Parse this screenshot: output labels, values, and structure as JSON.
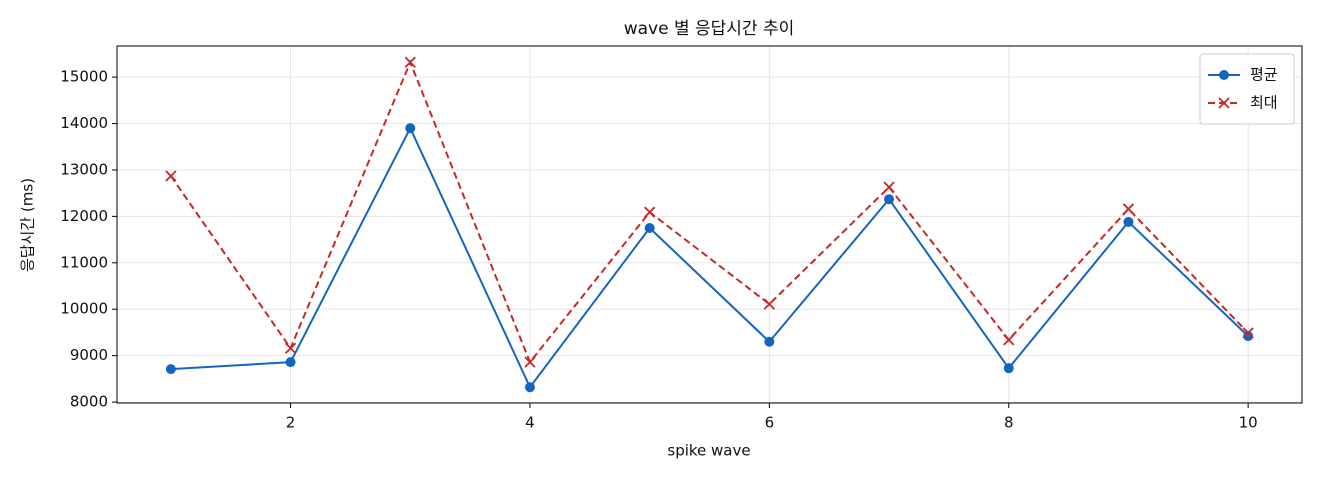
{
  "chart_data": {
    "type": "line",
    "title": "wave 별 응답시간 추이",
    "x_label": "spike wave",
    "y_label": "응답시간 (ms)",
    "x": [
      1,
      2,
      3,
      4,
      5,
      6,
      7,
      8,
      9,
      10
    ],
    "series": [
      {
        "name": "평균",
        "color": "#1565c0",
        "linestyle": "solid",
        "marker": "circle",
        "values": [
          8710,
          8860,
          13900,
          8320,
          11750,
          9300,
          12370,
          8730,
          11880,
          9420
        ]
      },
      {
        "name": "최대",
        "color": "#c62828",
        "linestyle": "dashed",
        "marker": "x",
        "values": [
          12870,
          9160,
          15320,
          8860,
          12090,
          10110,
          12630,
          9340,
          12160,
          9490
        ]
      }
    ],
    "xlim": [
      0.55,
      10.45
    ],
    "xticks": [
      2,
      4,
      6,
      8,
      10
    ],
    "ylim": [
      7980,
      15670
    ],
    "yticks": [
      8000,
      9000,
      10000,
      11000,
      12000,
      13000,
      14000,
      15000
    ],
    "grid": true,
    "legend": "upper right"
  }
}
